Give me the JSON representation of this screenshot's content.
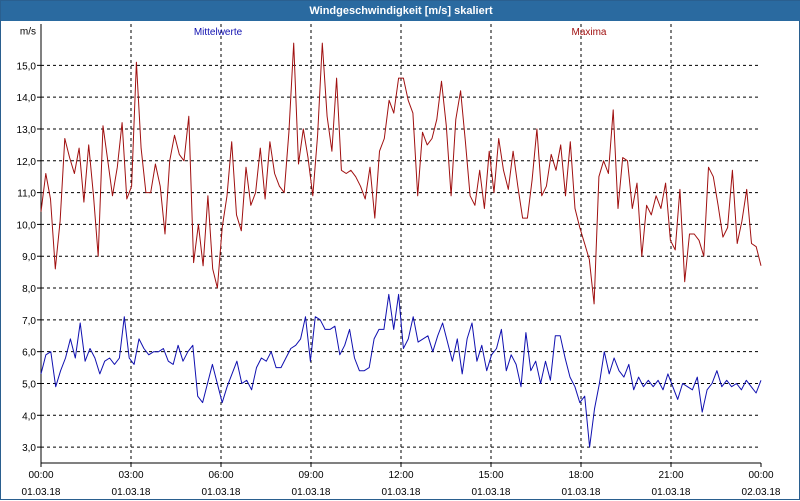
{
  "window": {
    "title": "Windgeschwindigkeit [m/s] skaliert"
  },
  "colors": {
    "series_mean": "#1010b0",
    "series_max": "#a01010",
    "grid": "#000000",
    "titlebar": "#2a6aa0"
  },
  "chart_data": {
    "type": "line",
    "ylabel": "m/s",
    "ylim": [
      2.5,
      16.3
    ],
    "xlim": [
      0,
      24
    ],
    "yticks": [
      "3,0",
      "4,0",
      "5,0",
      "6,0",
      "7,0",
      "8,0",
      "9,0",
      "10,0",
      "11,0",
      "12,0",
      "13,0",
      "14,0",
      "15,0"
    ],
    "yticks_values": [
      3,
      4,
      5,
      6,
      7,
      8,
      9,
      10,
      11,
      12,
      13,
      14,
      15
    ],
    "xticks": [
      {
        "time": "00:00",
        "date": "01.03.18",
        "hour": 0
      },
      {
        "time": "03:00",
        "date": "01.03.18",
        "hour": 3
      },
      {
        "time": "06:00",
        "date": "01.03.18",
        "hour": 6
      },
      {
        "time": "09:00",
        "date": "01.03.18",
        "hour": 9
      },
      {
        "time": "12:00",
        "date": "01.03.18",
        "hour": 12
      },
      {
        "time": "15:00",
        "date": "01.03.18",
        "hour": 15
      },
      {
        "time": "18:00",
        "date": "01.03.18",
        "hour": 18
      },
      {
        "time": "21:00",
        "date": "01.03.18",
        "hour": 21
      },
      {
        "time": "00:00",
        "date": "02.03.18",
        "hour": 24
      }
    ],
    "grid": true,
    "legend": [
      "Mittelwerte",
      "Maxima"
    ],
    "series": [
      {
        "name": "Maxima",
        "values": [
          10.4,
          11.6,
          10.8,
          8.6,
          10.1,
          12.7,
          12.1,
          11.6,
          12.4,
          10.7,
          12.5,
          10.9,
          9.0,
          13.1,
          12.0,
          10.9,
          11.8,
          13.2,
          10.8,
          11.2,
          15.1,
          12.4,
          11.0,
          11.0,
          11.9,
          11.2,
          9.7,
          12.0,
          12.8,
          12.2,
          12.0,
          13.4,
          8.8,
          10.0,
          8.7,
          10.9,
          8.6,
          8.0,
          9.9,
          10.9,
          12.6,
          10.3,
          9.8,
          11.8,
          10.6,
          11.0,
          12.4,
          10.8,
          12.6,
          11.6,
          11.2,
          11.0,
          12.9,
          15.7,
          11.9,
          13.0,
          12.1,
          10.9,
          12.8,
          15.7,
          13.4,
          12.3,
          14.6,
          11.7,
          11.6,
          11.7,
          11.5,
          11.2,
          10.8,
          11.8,
          10.2,
          12.3,
          12.7,
          13.9,
          13.5,
          14.6,
          14.6,
          13.9,
          13.5,
          10.9,
          12.9,
          12.5,
          12.7,
          13.3,
          14.5,
          13.1,
          10.9,
          13.3,
          14.2,
          12.6,
          10.9,
          10.6,
          11.7,
          10.5,
          12.3,
          11.0,
          12.7,
          11.7,
          11.1,
          12.3,
          11.2,
          10.2,
          10.2,
          11.4,
          13.0,
          10.9,
          11.2,
          12.2,
          11.7,
          12.5,
          10.9,
          12.6,
          10.5,
          9.9,
          9.4,
          8.9,
          7.5,
          11.5,
          12.0,
          11.6,
          13.6,
          10.5,
          12.1,
          12.0,
          10.5,
          11.3,
          9.0,
          10.6,
          10.3,
          10.9,
          10.5,
          11.3,
          9.5,
          9.2,
          11.1,
          8.2,
          9.7,
          9.7,
          9.5,
          9.0,
          11.8,
          11.5,
          10.6,
          9.6,
          9.9,
          11.7,
          9.4,
          10.1,
          11.1,
          9.4,
          9.3,
          8.7
        ]
      },
      {
        "name": "Mittelwerte",
        "values": [
          5.3,
          5.9,
          6.0,
          4.9,
          5.4,
          5.8,
          6.4,
          5.8,
          6.9,
          5.7,
          6.1,
          5.8,
          5.3,
          5.7,
          5.8,
          5.6,
          5.8,
          7.1,
          5.8,
          5.6,
          6.4,
          6.1,
          5.9,
          6.0,
          6.0,
          6.1,
          5.7,
          5.6,
          6.2,
          5.7,
          6.0,
          6.2,
          4.6,
          4.4,
          5.0,
          5.6,
          5.0,
          4.4,
          4.9,
          5.3,
          5.7,
          5.0,
          5.1,
          4.8,
          5.5,
          5.8,
          5.7,
          6.0,
          5.5,
          5.5,
          5.8,
          6.1,
          6.2,
          6.4,
          7.1,
          5.7,
          7.1,
          7.0,
          6.7,
          6.7,
          6.8,
          5.9,
          6.2,
          6.7,
          5.8,
          5.4,
          5.4,
          5.5,
          6.4,
          6.7,
          6.7,
          7.8,
          6.7,
          7.8,
          6.1,
          6.4,
          7.1,
          6.3,
          6.4,
          6.5,
          6.0,
          6.5,
          6.9,
          6.3,
          5.7,
          6.4,
          5.3,
          6.4,
          6.9,
          5.7,
          6.2,
          5.4,
          5.9,
          6.1,
          6.7,
          5.4,
          5.9,
          5.6,
          4.9,
          6.6,
          5.4,
          5.7,
          5.0,
          5.7,
          5.1,
          6.5,
          6.5,
          5.8,
          5.2,
          4.9,
          4.4,
          4.6,
          3.0,
          4.2,
          5.0,
          6.0,
          5.3,
          5.8,
          5.4,
          5.2,
          5.6,
          4.8,
          5.2,
          4.9,
          5.1,
          4.9,
          5.1,
          4.8,
          5.3,
          4.9,
          4.5,
          5.0,
          4.9,
          4.8,
          5.2,
          4.1,
          4.8,
          5.0,
          5.4,
          4.9,
          5.1,
          4.9,
          5.0,
          4.8,
          5.1,
          4.9,
          4.7,
          5.1
        ]
      }
    ]
  }
}
